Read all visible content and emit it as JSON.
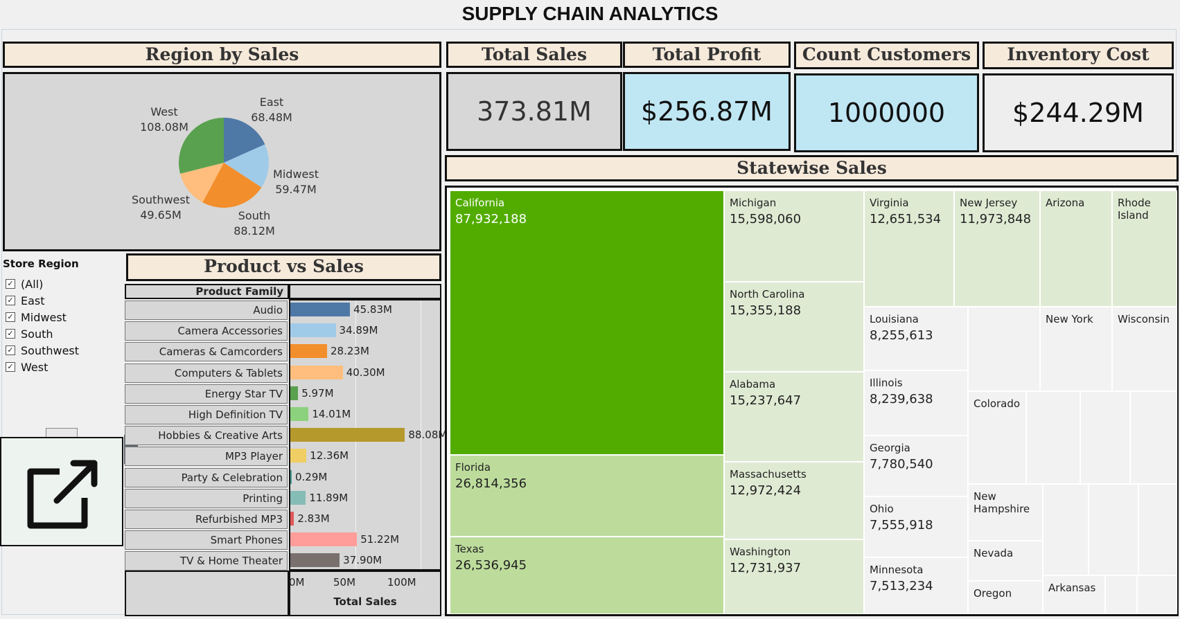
{
  "app_title": "SUPPLY CHAIN ANALYTICS",
  "colors": {
    "header_bg": "#f6eadb",
    "kpi_highlight": "#bfe6f3",
    "panel_bg": "#d7d7d7",
    "treemap_top": "#52ac00",
    "treemap_mid": "#bddc9c",
    "treemap_light": "#dfead3",
    "treemap_pale": "#f2f2f2"
  },
  "region_panel": {
    "title": "Region by Sales",
    "slices": [
      {
        "name": "East",
        "value_label": "68.48M",
        "value": 68.48,
        "color": "#4e79a7"
      },
      {
        "name": "Midwest",
        "value_label": "59.47M",
        "value": 59.47,
        "color": "#a0cbe8"
      },
      {
        "name": "South",
        "value_label": "88.12M",
        "value": 88.12,
        "color": "#f28e2b"
      },
      {
        "name": "Southwest",
        "value_label": "49.65M",
        "value": 49.65,
        "color": "#ffbe7d"
      },
      {
        "name": "West",
        "value_label": "108.08M",
        "value": 108.08,
        "color": "#59a14f"
      }
    ]
  },
  "kpis": [
    {
      "title": "Total Sales",
      "value": "373.81M"
    },
    {
      "title": "Total Profit",
      "value": "$256.87M"
    },
    {
      "title": "Count Customers",
      "value": "1000000"
    },
    {
      "title": "Inventory Cost",
      "value": "$244.29M"
    }
  ],
  "filter": {
    "title": "Store Region",
    "items": [
      "(All)",
      "East",
      "Midwest",
      "South",
      "Southwest",
      "West"
    ]
  },
  "product_panel": {
    "title": "Product vs Sales",
    "column_header": "Product Family",
    "x_axis_title": "Total Sales",
    "x_ticks": [
      "0M",
      "50M",
      "100M"
    ]
  },
  "chart_data": [
    {
      "type": "pie",
      "title": "Region by Sales",
      "categories": [
        "East",
        "Midwest",
        "South",
        "Southwest",
        "West"
      ],
      "values": [
        68.48,
        59.47,
        88.12,
        49.65,
        108.08
      ]
    },
    {
      "type": "bar",
      "title": "Product vs Sales",
      "xlabel": "Total Sales",
      "xlim": [
        0,
        115
      ],
      "categories": [
        "Audio",
        "Camera Accessories",
        "Cameras & Camcorders",
        "Computers & Tablets",
        "Energy Star TV",
        "High Definition TV",
        "Hobbies & Creative Arts",
        "MP3 Player",
        "Party & Celebration",
        "Printing",
        "Refurbished MP3",
        "Smart Phones",
        "TV & Home Theater"
      ],
      "values": [
        45.83,
        34.89,
        28.23,
        40.3,
        5.97,
        14.01,
        88.08,
        12.36,
        0.29,
        11.89,
        2.83,
        51.22,
        37.9
      ],
      "labels": [
        "45.83M",
        "34.89M",
        "28.23M",
        "40.30M",
        "5.97M",
        "14.01M",
        "88.08M",
        "12.36M",
        "0.29M",
        "11.89M",
        "2.83M",
        "51.22M",
        "37.90M"
      ],
      "colors": [
        "#4e79a7",
        "#a0cbe8",
        "#f28e2b",
        "#ffbe7d",
        "#59a14f",
        "#8cd17d",
        "#b6992d",
        "#f1ce63",
        "#499894",
        "#86bcb6",
        "#e15759",
        "#ff9d9a",
        "#79706e"
      ]
    },
    {
      "type": "treemap",
      "title": "Statewise Sales",
      "categories": [
        "California",
        "Florida",
        "Texas",
        "Michigan",
        "North Carolina",
        "Alabama",
        "Massachusetts",
        "Washington",
        "Virginia",
        "New Jersey",
        "Arizona",
        "Rhode Island",
        "Louisiana",
        "Illinois",
        "Georgia",
        "Ohio",
        "Minnesota",
        "New York",
        "Wisconsin",
        "Colorado",
        "New Hampshire",
        "Nevada",
        "Oregon",
        "Arkansas"
      ],
      "values": [
        87932188,
        26814356,
        26536945,
        15598060,
        15355188,
        15237647,
        12972424,
        12731937,
        12651534,
        11973848,
        null,
        null,
        8255613,
        8239638,
        7780540,
        7555918,
        7513234,
        null,
        null,
        null,
        null,
        null,
        null,
        null
      ],
      "labels": [
        "87,932,188",
        "26,814,356",
        "26,536,945",
        "15,598,060",
        "15,355,188",
        "15,237,647",
        "12,972,424",
        "12,731,937",
        "12,651,534",
        "11,973,848",
        "",
        "",
        "8,255,613",
        "8,239,638",
        "7,780,540",
        "7,555,918",
        "7,513,234",
        "",
        "",
        "",
        "",
        "",
        "",
        ""
      ]
    }
  ],
  "treemap_title": "Statewise Sales"
}
